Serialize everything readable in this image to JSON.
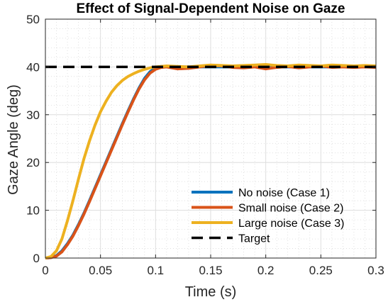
{
  "chart_data": {
    "type": "line",
    "title": "Effect of Signal-Dependent Noise on Gaze",
    "xlabel": "Time (s)",
    "ylabel": "Gaze Angle (deg)",
    "xlim": [
      0,
      0.3
    ],
    "ylim": [
      0,
      50
    ],
    "xticks": [
      0,
      0.05,
      0.1,
      0.15,
      0.2,
      0.25,
      0.3
    ],
    "xtick_labels": [
      "0",
      "0.05",
      "0.1",
      "0.15",
      "0.2",
      "0.25",
      "0.3"
    ],
    "yticks": [
      0,
      10,
      20,
      30,
      40,
      50
    ],
    "ytick_labels": [
      "0",
      "10",
      "20",
      "30",
      "40",
      "50"
    ],
    "grid": true,
    "minor_grid": true,
    "legend_position": "bottom-right",
    "series": [
      {
        "name": "No noise (Case 1)",
        "color": "#0072BD",
        "style": "solid",
        "x": [
          0,
          0.005,
          0.01,
          0.015,
          0.02,
          0.025,
          0.03,
          0.035,
          0.04,
          0.045,
          0.05,
          0.055,
          0.06,
          0.065,
          0.07,
          0.075,
          0.08,
          0.085,
          0.09,
          0.095,
          0.1,
          0.105,
          0.11,
          0.115,
          0.12,
          0.13,
          0.14,
          0.15,
          0.17,
          0.2,
          0.23,
          0.26,
          0.28,
          0.3
        ],
        "y": [
          0,
          0.1,
          0.5,
          1.5,
          3.0,
          4.8,
          7.0,
          9.4,
          12.0,
          14.7,
          17.4,
          20.1,
          22.8,
          25.5,
          28.2,
          30.8,
          33.3,
          35.6,
          37.6,
          39.0,
          39.8,
          40.1,
          40.1,
          40.0,
          40.0,
          40.0,
          40.0,
          40.0,
          40.0,
          40.0,
          40.0,
          40.0,
          40.0,
          40.0
        ]
      },
      {
        "name": "Small noise (Case 2)",
        "color": "#D95319",
        "style": "solid",
        "x": [
          0,
          0.005,
          0.01,
          0.015,
          0.02,
          0.025,
          0.03,
          0.035,
          0.04,
          0.045,
          0.05,
          0.055,
          0.06,
          0.065,
          0.07,
          0.075,
          0.08,
          0.085,
          0.09,
          0.095,
          0.1,
          0.105,
          0.11,
          0.115,
          0.12,
          0.13,
          0.14,
          0.15,
          0.16,
          0.17,
          0.18,
          0.19,
          0.2,
          0.21,
          0.22,
          0.23,
          0.24,
          0.25,
          0.26,
          0.27,
          0.28,
          0.29,
          0.3
        ],
        "y": [
          0,
          0.1,
          0.4,
          1.3,
          2.8,
          4.6,
          6.8,
          9.2,
          11.8,
          14.5,
          17.2,
          19.9,
          22.6,
          25.3,
          28.0,
          30.6,
          33.1,
          35.4,
          37.3,
          38.7,
          39.5,
          39.9,
          40.0,
          39.8,
          39.6,
          39.7,
          40.0,
          40.3,
          40.2,
          39.9,
          39.8,
          40.0,
          39.6,
          39.9,
          40.1,
          39.8,
          40.0,
          40.2,
          39.9,
          40.0,
          39.9,
          40.0,
          39.9
        ]
      },
      {
        "name": "Large noise (Case 3)",
        "color": "#EDB120",
        "style": "solid",
        "x": [
          0,
          0.005,
          0.01,
          0.015,
          0.02,
          0.025,
          0.03,
          0.035,
          0.04,
          0.045,
          0.05,
          0.055,
          0.06,
          0.065,
          0.07,
          0.075,
          0.08,
          0.085,
          0.09,
          0.095,
          0.1,
          0.105,
          0.11,
          0.12,
          0.13,
          0.14,
          0.15,
          0.16,
          0.17,
          0.18,
          0.19,
          0.2,
          0.21,
          0.22,
          0.23,
          0.24,
          0.25,
          0.26,
          0.27,
          0.28,
          0.29,
          0.3
        ],
        "y": [
          0,
          0.3,
          1.5,
          4.0,
          7.8,
          12.0,
          16.5,
          20.8,
          24.5,
          27.8,
          30.6,
          32.8,
          34.7,
          36.1,
          37.2,
          38.0,
          38.6,
          39.1,
          39.5,
          39.8,
          40.0,
          40.1,
          40.2,
          40.1,
          40.0,
          40.2,
          40.4,
          40.3,
          40.2,
          40.3,
          40.4,
          40.5,
          40.3,
          40.2,
          40.4,
          40.3,
          40.2,
          40.4,
          40.3,
          40.2,
          40.3,
          40.2
        ]
      },
      {
        "name": "Target",
        "color": "#000000",
        "style": "dashed",
        "x": [
          0,
          0.3
        ],
        "y": [
          40,
          40
        ]
      }
    ]
  }
}
